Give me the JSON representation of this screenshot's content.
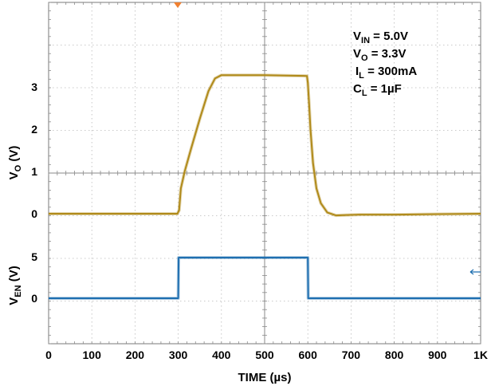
{
  "chart_data": {
    "type": "line",
    "xlabel": "TIME (µs)",
    "x_ticks": [
      "0",
      "100",
      "200",
      "300",
      "400",
      "500",
      "600",
      "700",
      "800",
      "900",
      "1K"
    ],
    "xlim": [
      0,
      1000
    ],
    "grid": true,
    "panels": [
      {
        "ylabel": {
          "base": "V",
          "sub": "O",
          "rest": " (V)"
        },
        "y_ticks": [
          "0",
          "1",
          "2",
          "3"
        ],
        "series": [
          {
            "color": "#b08a1a",
            "x": [
              0,
              298,
              302,
              306,
              315,
              330,
              350,
              370,
              385,
              400,
              450,
              500,
              550,
              598,
              600,
              603,
              606,
              612,
              620,
              630,
              645,
              665,
              690,
              720,
              760,
              800,
              900,
              1000
            ],
            "y": [
              0,
              0,
              0.08,
              0.6,
              1.0,
              1.55,
              2.25,
              2.9,
              3.2,
              3.28,
              3.28,
              3.28,
              3.27,
              3.26,
              3.1,
              2.6,
              2.0,
              1.2,
              0.6,
              0.25,
              0.03,
              -0.04,
              -0.03,
              -0.02,
              -0.02,
              -0.02,
              -0.01,
              0
            ]
          }
        ]
      },
      {
        "ylabel": {
          "base": "V",
          "sub": "EN",
          "rest": " (V)"
        },
        "y_ticks": [
          "0",
          "5"
        ],
        "series": [
          {
            "color": "#1f6fb0",
            "x": [
              0,
              300,
              301,
              600,
              601,
              1000
            ],
            "y": [
              0,
              0,
              4.9,
              4.9,
              0,
              0
            ]
          }
        ]
      }
    ],
    "annotations": [
      {
        "base": "V",
        "sub": "IN",
        "rest": " = 5.0V"
      },
      {
        "base": "V",
        "sub": "O",
        "rest": " = 3.3V"
      },
      {
        "base": "I",
        "sub": "L",
        "rest": " = 300mA"
      },
      {
        "base": "C",
        "sub": "L",
        "rest": " = 1µF"
      }
    ]
  }
}
